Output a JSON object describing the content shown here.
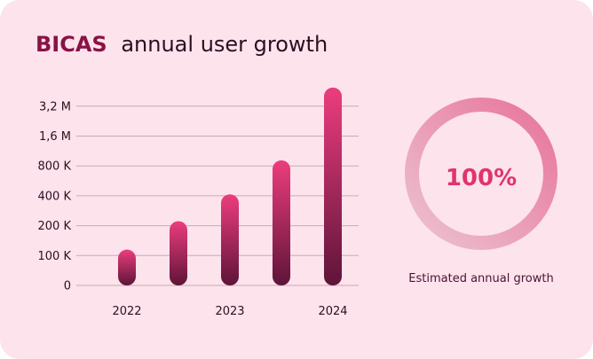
{
  "title": {
    "brand": "BICAS",
    "rest": "annual user growth"
  },
  "chart_data": {
    "type": "bar",
    "x_tick_labels": [
      "2022",
      "2023",
      "2024"
    ],
    "y_tick_labels": [
      "0",
      "100 K",
      "200 K",
      "400 K",
      "800 K",
      "1,6 M",
      "3,2 M"
    ],
    "y_tick_values": [
      0,
      100000,
      200000,
      400000,
      800000,
      1600000,
      3200000
    ],
    "values": [
      120000,
      230000,
      420000,
      950000,
      4200000
    ],
    "ylabel": "",
    "xlabel": "",
    "grid": true
  },
  "kpi": {
    "value": "100%",
    "progress": 1.0,
    "caption": "Estimated annual growth"
  },
  "colors": {
    "background": "#fde3ec",
    "bar_top": "#ec3d7e",
    "bar_bottom": "#5e1438",
    "ring_light": "#ecc2d0",
    "ring_strong": "#e8749c",
    "accent": "#e0346f",
    "brand": "#8a1245"
  }
}
